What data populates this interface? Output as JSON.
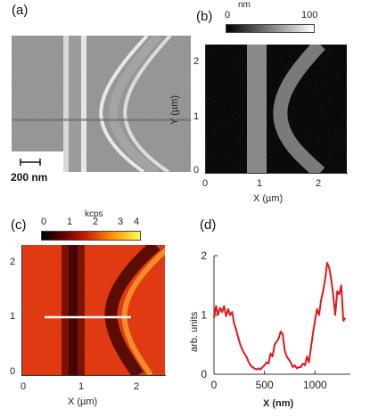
{
  "figure": {
    "panels": {
      "a": {
        "label": "(a)",
        "scale_bar_label": "200 nm"
      },
      "b": {
        "label": "(b)",
        "colorbar": {
          "unit": "nm",
          "min_label": "0",
          "max_label": "100"
        },
        "x_axis": {
          "label": "X (µm)",
          "ticks": [
            "0",
            "1",
            "2"
          ]
        },
        "y_axis": {
          "label": "Y (µm)",
          "ticks": [
            "0",
            "1",
            "2"
          ]
        }
      },
      "c": {
        "label": "(c)",
        "colorbar": {
          "unit": "kcps",
          "ticks": [
            "0",
            "1",
            "2",
            "3",
            "4"
          ]
        },
        "x_axis": {
          "label": "X (µm)",
          "ticks": [
            "0",
            "1",
            "2"
          ]
        },
        "y_axis": {
          "ticks": [
            "0",
            "1",
            "2"
          ]
        }
      },
      "d": {
        "label": "(d)"
      }
    }
  },
  "chart_data": {
    "type": "line",
    "panel": "d",
    "xlabel": "X (nm)",
    "ylabel": "arb. units",
    "xlim": [
      0,
      1350
    ],
    "ylim": [
      0,
      2
    ],
    "xticks": [
      "0",
      "500",
      "1000"
    ],
    "yticks": [
      "0",
      "1",
      "2"
    ],
    "series": [
      {
        "color": "#e0191b",
        "x": [
          0,
          20,
          40,
          60,
          80,
          100,
          120,
          140,
          160,
          180,
          200,
          220,
          240,
          260,
          280,
          300,
          320,
          340,
          360,
          380,
          400,
          420,
          440,
          460,
          480,
          500,
          520,
          540,
          560,
          580,
          600,
          620,
          640,
          660,
          680,
          700,
          720,
          740,
          760,
          780,
          800,
          820,
          840,
          860,
          880,
          900,
          920,
          940,
          960,
          980,
          1000,
          1020,
          1040,
          1060,
          1080,
          1100,
          1120,
          1140,
          1160,
          1180,
          1200,
          1220,
          1240,
          1260,
          1280,
          1300
        ],
        "y": [
          0.95,
          1.15,
          1.0,
          1.12,
          1.05,
          1.15,
          0.98,
          1.1,
          1.0,
          1.05,
          0.85,
          0.75,
          0.62,
          0.5,
          0.42,
          0.35,
          0.3,
          0.22,
          0.15,
          0.12,
          0.1,
          0.08,
          0.1,
          0.08,
          0.12,
          0.15,
          0.2,
          0.18,
          0.35,
          0.3,
          0.5,
          0.55,
          0.6,
          0.72,
          0.68,
          0.4,
          0.3,
          0.25,
          0.2,
          0.12,
          0.15,
          0.1,
          0.12,
          0.12,
          0.18,
          0.15,
          0.3,
          0.2,
          0.45,
          0.7,
          0.9,
          1.1,
          1.0,
          1.25,
          1.4,
          1.6,
          1.88,
          1.8,
          1.6,
          1.35,
          1.0,
          1.4,
          1.35,
          1.5,
          0.9,
          0.95
        ]
      }
    ]
  }
}
